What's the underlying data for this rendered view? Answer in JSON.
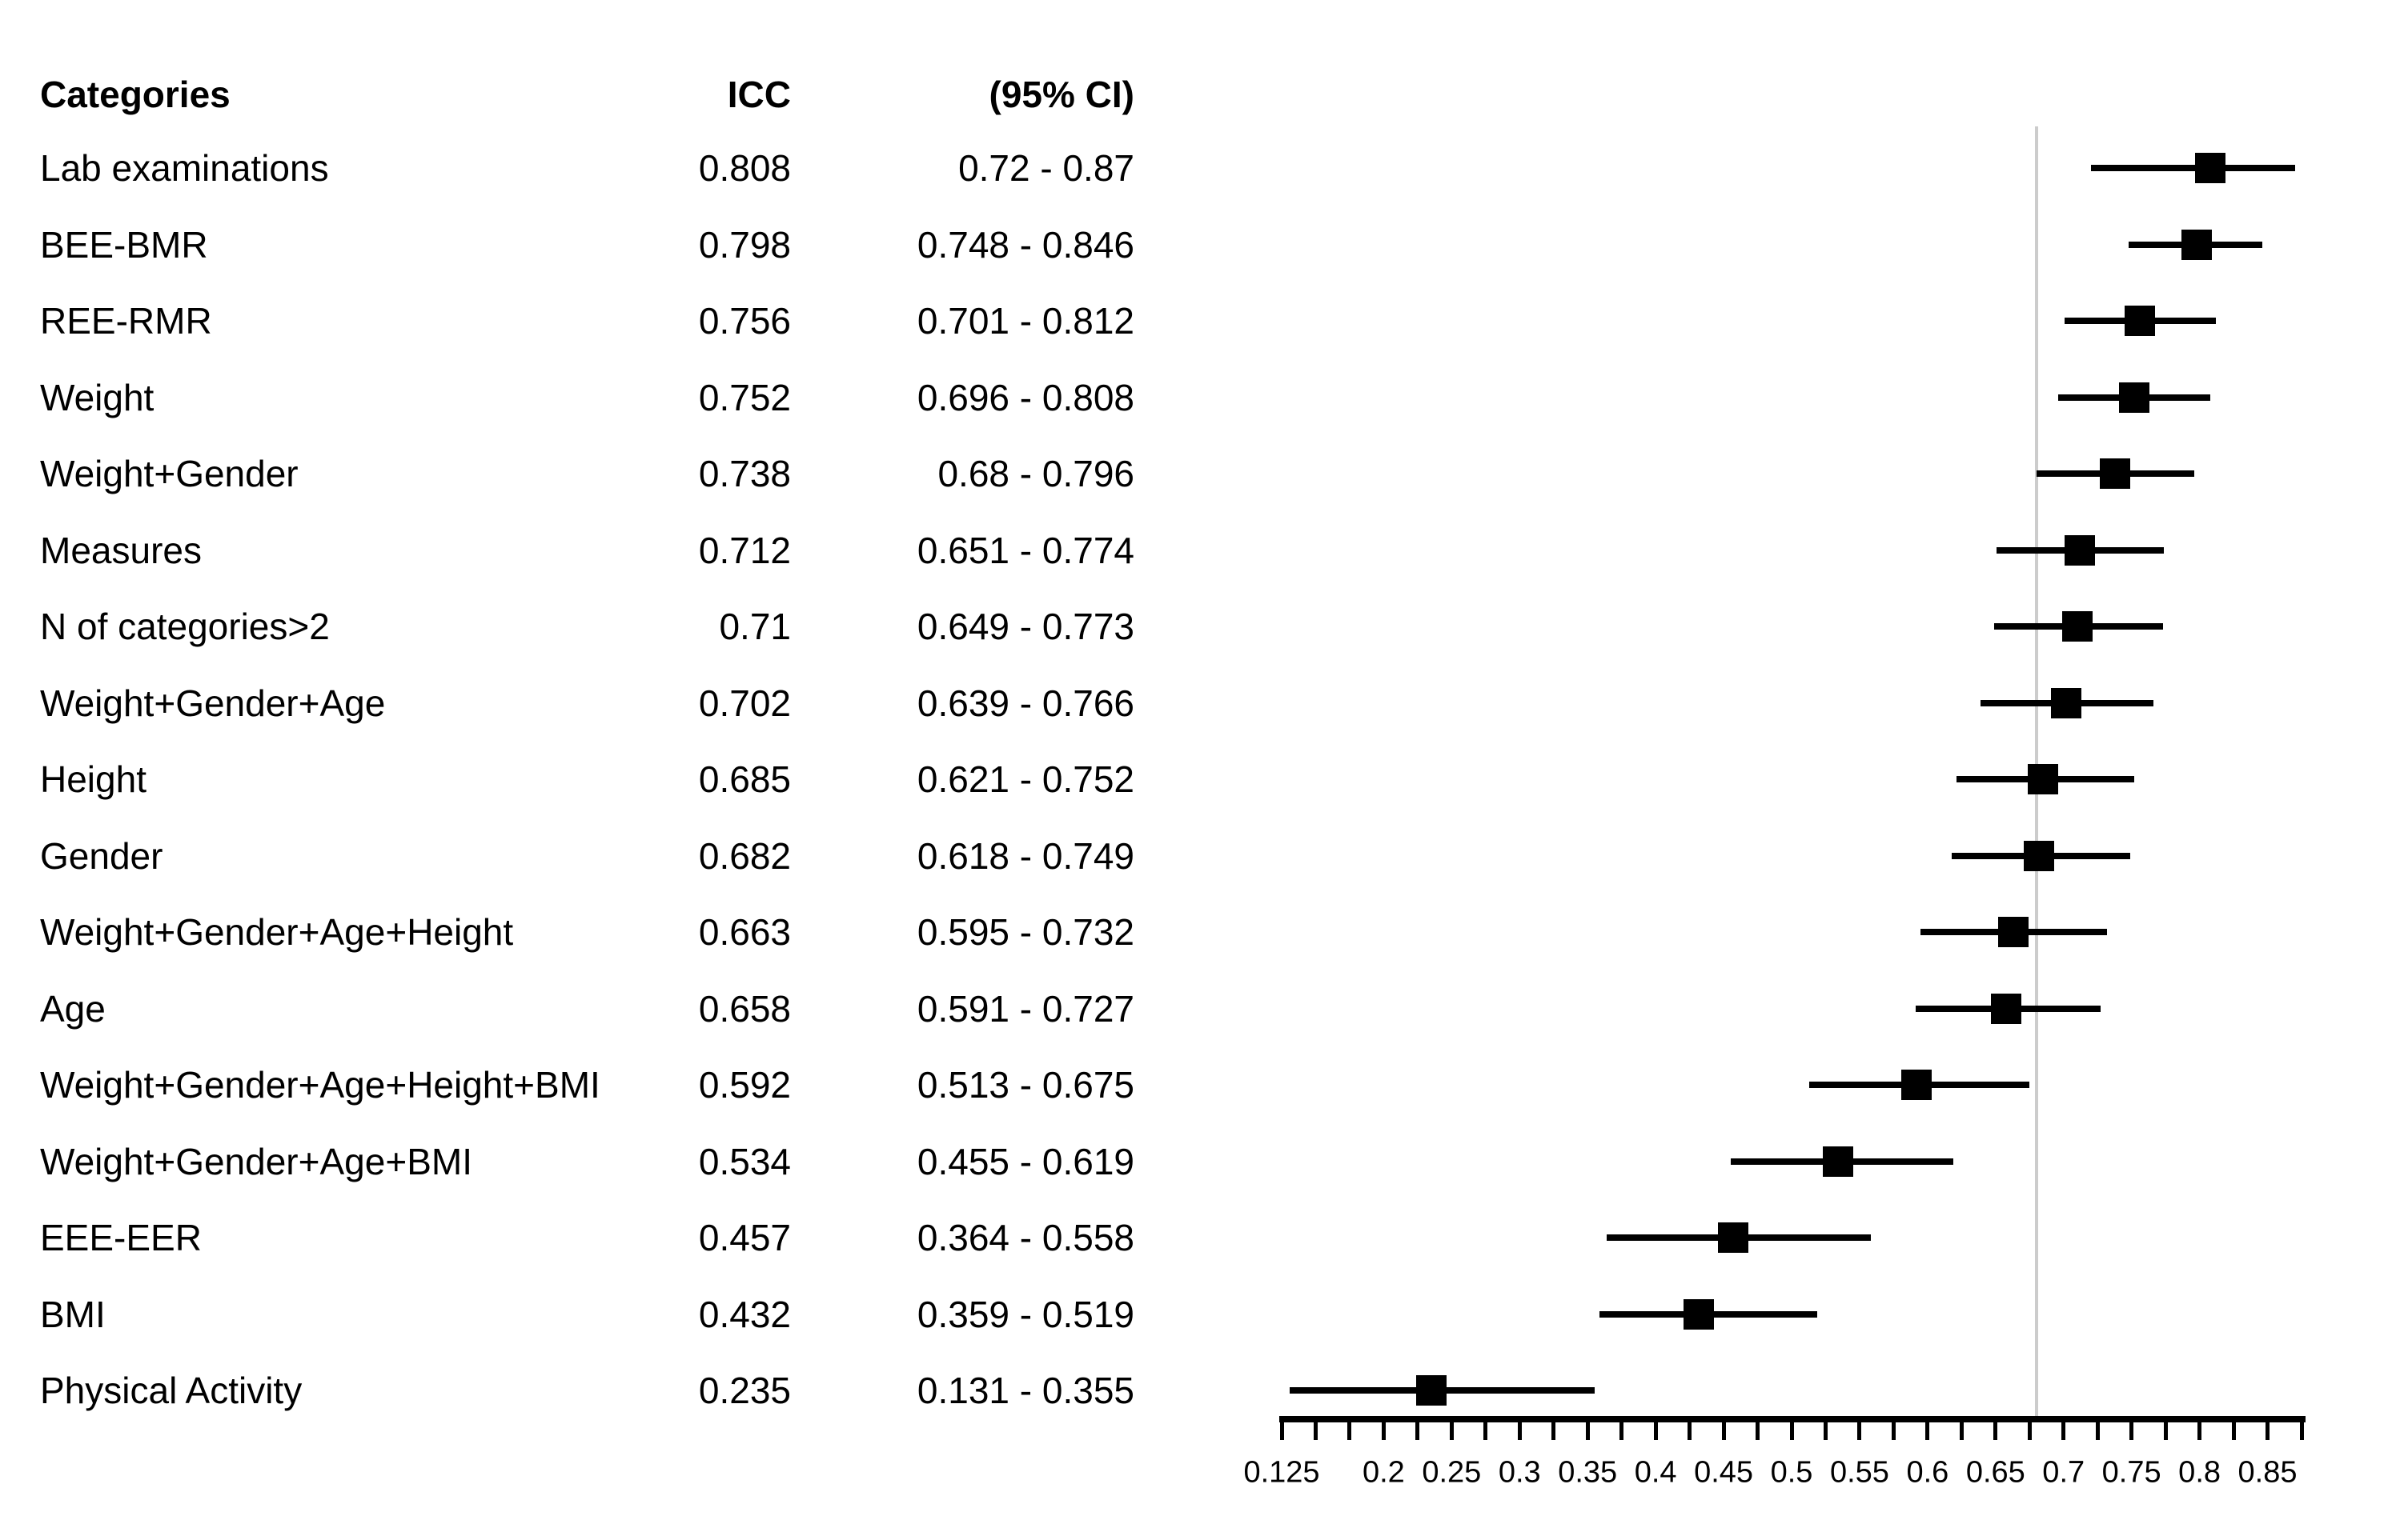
{
  "chart_data": {
    "type": "forest",
    "title": "",
    "columns": [
      "Categories",
      "ICC",
      "(95% CI)"
    ],
    "rows": [
      {
        "category": "Lab examinations",
        "icc": "0.808",
        "ci": "0.72 - 0.87",
        "icc_value": 0.808,
        "ci_low": 0.72,
        "ci_high": 0.87
      },
      {
        "category": "BEE-BMR",
        "icc": "0.798",
        "ci": "0.748 - 0.846",
        "icc_value": 0.798,
        "ci_low": 0.748,
        "ci_high": 0.846
      },
      {
        "category": "REE-RMR",
        "icc": "0.756",
        "ci": "0.701 - 0.812",
        "icc_value": 0.756,
        "ci_low": 0.701,
        "ci_high": 0.812
      },
      {
        "category": "Weight",
        "icc": "0.752",
        "ci": "0.696 - 0.808",
        "icc_value": 0.752,
        "ci_low": 0.696,
        "ci_high": 0.808
      },
      {
        "category": "Weight+Gender",
        "icc": "0.738",
        "ci": "0.68 - 0.796",
        "icc_value": 0.738,
        "ci_low": 0.68,
        "ci_high": 0.796
      },
      {
        "category": "Measures",
        "icc": "0.712",
        "ci": "0.651 - 0.774",
        "icc_value": 0.712,
        "ci_low": 0.651,
        "ci_high": 0.774
      },
      {
        "category": "N of categories>2",
        "icc": "0.71",
        "ci": "0.649 - 0.773",
        "icc_value": 0.71,
        "ci_low": 0.649,
        "ci_high": 0.773
      },
      {
        "category": "Weight+Gender+Age",
        "icc": "0.702",
        "ci": "0.639 - 0.766",
        "icc_value": 0.702,
        "ci_low": 0.639,
        "ci_high": 0.766
      },
      {
        "category": "Height",
        "icc": "0.685",
        "ci": "0.621 - 0.752",
        "icc_value": 0.685,
        "ci_low": 0.621,
        "ci_high": 0.752
      },
      {
        "category": "Gender",
        "icc": "0.682",
        "ci": "0.618 - 0.749",
        "icc_value": 0.682,
        "ci_low": 0.618,
        "ci_high": 0.749
      },
      {
        "category": "Weight+Gender+Age+Height",
        "icc": "0.663",
        "ci": "0.595 - 0.732",
        "icc_value": 0.663,
        "ci_low": 0.595,
        "ci_high": 0.732
      },
      {
        "category": "Age",
        "icc": "0.658",
        "ci": "0.591 - 0.727",
        "icc_value": 0.658,
        "ci_low": 0.591,
        "ci_high": 0.727
      },
      {
        "category": "Weight+Gender+Age+Height+BMI",
        "icc": "0.592",
        "ci": "0.513 - 0.675",
        "icc_value": 0.592,
        "ci_low": 0.513,
        "ci_high": 0.675
      },
      {
        "category": "Weight+Gender+Age+BMI",
        "icc": "0.534",
        "ci": "0.455 - 0.619",
        "icc_value": 0.534,
        "ci_low": 0.455,
        "ci_high": 0.619
      },
      {
        "category": "EEE-EER",
        "icc": "0.457",
        "ci": "0.364 - 0.558",
        "icc_value": 0.457,
        "ci_low": 0.364,
        "ci_high": 0.558
      },
      {
        "category": "BMI",
        "icc": "0.432",
        "ci": "0.359 - 0.519",
        "icc_value": 0.432,
        "ci_low": 0.359,
        "ci_high": 0.519
      },
      {
        "category": "Physical Activity",
        "icc": "0.235",
        "ci": "0.131 - 0.355",
        "icc_value": 0.235,
        "ci_low": 0.131,
        "ci_high": 0.355
      }
    ],
    "x_axis": {
      "range": [
        0.125,
        0.875
      ],
      "minor_tick_step": 0.025,
      "tick_labels": [
        "0.125",
        "0.2",
        "0.25",
        "0.3",
        "0.35",
        "0.4",
        "0.45",
        "0.5",
        "0.55",
        "0.6",
        "0.65",
        "0.7",
        "0.75",
        "0.8",
        "0.85"
      ],
      "tick_label_values": [
        0.125,
        0.2,
        0.25,
        0.3,
        0.35,
        0.4,
        0.45,
        0.5,
        0.55,
        0.6,
        0.65,
        0.7,
        0.75,
        0.8,
        0.85
      ],
      "grid": false
    },
    "reference_line": {
      "value": 0.68
    },
    "marker": {
      "shape": "square"
    },
    "legend": null,
    "colors": {
      "text": "#000000",
      "marker": "#000000",
      "ci_line": "#000000",
      "reference_line": "#cccccc"
    }
  }
}
